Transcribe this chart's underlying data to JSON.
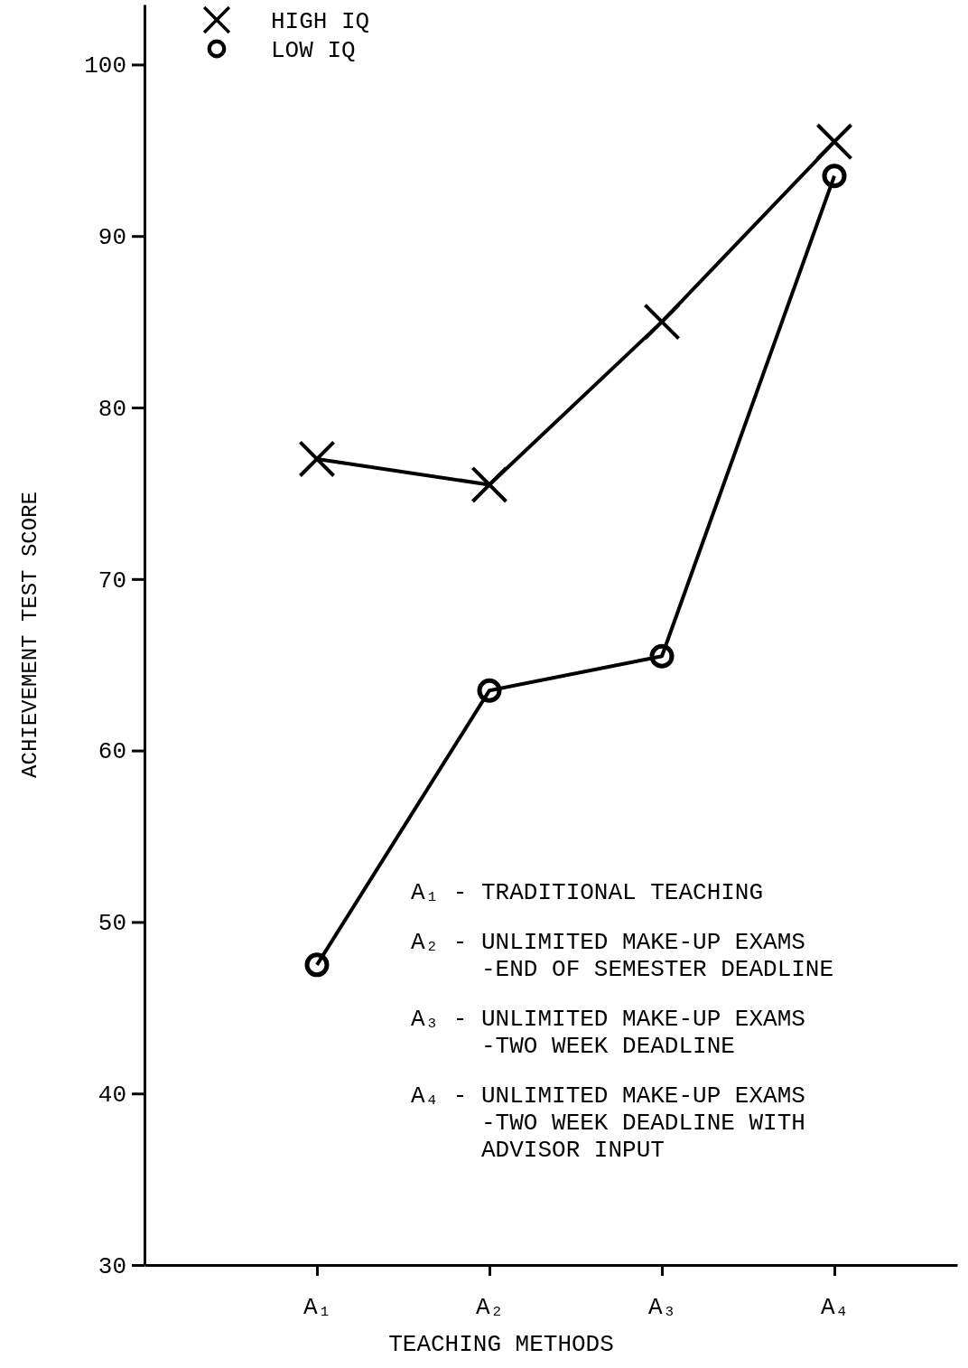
{
  "chart_data": {
    "type": "line",
    "xlabel": "TEACHING METHODS",
    "ylabel": "ACHIEVEMENT TEST SCORE",
    "categories": [
      "A₁",
      "A₂",
      "A₃",
      "A₄"
    ],
    "series": [
      {
        "name": "HIGH IQ",
        "color": "#000000",
        "marker": "cross",
        "values": [
          77,
          75.5,
          85,
          95.5
        ]
      },
      {
        "name": "LOW IQ",
        "color": "#000000",
        "marker": "circle",
        "values": [
          47.5,
          63.5,
          65.5,
          93.5
        ]
      }
    ],
    "ylim": [
      30,
      103.5
    ],
    "yticks": [
      30,
      40,
      50,
      60,
      70,
      80,
      90,
      100
    ],
    "grid": false,
    "legend": "top left",
    "annotations": [
      "A₁ - TRADITIONAL TEACHING",
      "A₂ - UNLIMITED MAKE-UP EXAMS\n     -END OF SEMESTER DEADLINE",
      "A₃ - UNLIMITED MAKE-UP EXAMS\n     -TWO WEEK DEADLINE",
      "A₄ - UNLIMITED MAKE-UP EXAMS\n     -TWO WEEK DEADLINE WITH\n     ADVISOR INPUT"
    ]
  }
}
